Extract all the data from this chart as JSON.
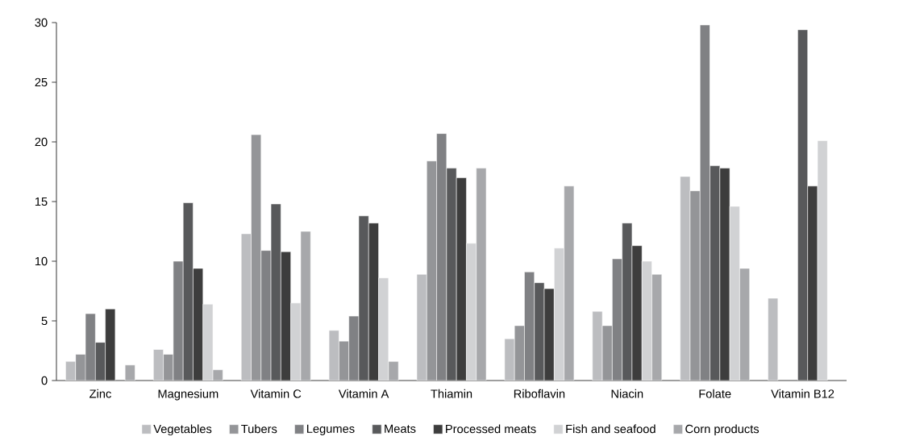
{
  "chart_data": {
    "type": "bar",
    "categories": [
      "Zinc",
      "Magnesium",
      "Vitamin C",
      "Vitamin A",
      "Thiamin",
      "Riboflavin",
      "Niacin",
      "Folate",
      "Vitamin B12"
    ],
    "series": [
      {
        "name": "Vegetables",
        "color": "#bcbdc0",
        "values": [
          1.6,
          2.6,
          12.3,
          4.2,
          8.9,
          3.5,
          5.8,
          17.1,
          6.9
        ]
      },
      {
        "name": "Tubers",
        "color": "#949598",
        "values": [
          2.2,
          2.2,
          20.6,
          3.3,
          18.4,
          4.6,
          4.6,
          15.9,
          null
        ]
      },
      {
        "name": "Legumes",
        "color": "#808184",
        "values": [
          5.6,
          10.0,
          10.9,
          5.4,
          20.7,
          9.1,
          10.2,
          29.8,
          null
        ]
      },
      {
        "name": "Meats",
        "color": "#58595b",
        "values": [
          3.2,
          14.9,
          14.8,
          13.8,
          17.8,
          8.2,
          13.2,
          18.0,
          29.4
        ]
      },
      {
        "name": "Processed meats",
        "color": "#3d3d3d",
        "values": [
          6.0,
          9.4,
          10.8,
          13.2,
          17.0,
          7.7,
          11.3,
          17.8,
          16.3
        ]
      },
      {
        "name": "Fish and seafood",
        "color": "#d1d2d4",
        "values": [
          null,
          6.4,
          6.5,
          8.6,
          11.5,
          11.1,
          10.0,
          14.6,
          20.1
        ]
      },
      {
        "name": "Corn products",
        "color": "#a7a8ab",
        "values": [
          1.3,
          0.9,
          12.5,
          1.6,
          17.8,
          16.3,
          8.9,
          9.4,
          null
        ]
      }
    ],
    "ylim": [
      0,
      30
    ],
    "yticks": [
      0,
      5,
      10,
      15,
      20,
      25,
      30
    ],
    "legend": "bottom"
  }
}
